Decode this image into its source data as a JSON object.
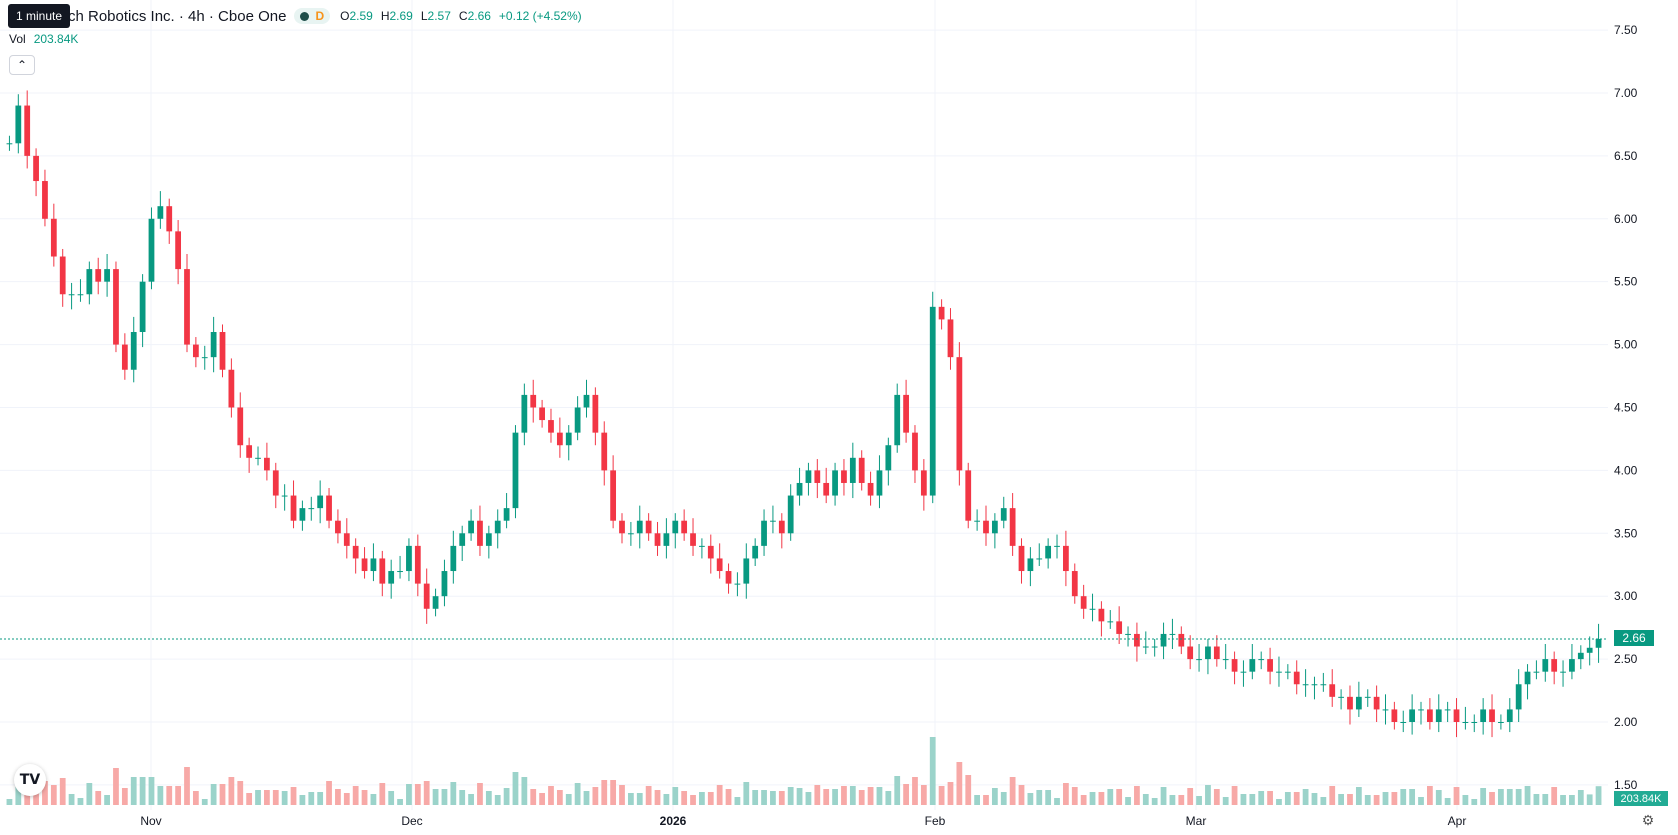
{
  "tooltip": "1 minute",
  "legend": {
    "title": "ch Robotics Inc. · 4h · Cboe One",
    "badge": "D",
    "o_label": "O",
    "o": "2.59",
    "h_label": "H",
    "h": "2.69",
    "l_label": "L",
    "l": "2.57",
    "c_label": "C",
    "c": "2.66",
    "change": "+0.12 (+4.52%)"
  },
  "volume_legend": {
    "label": "Vol",
    "value": "203.84K"
  },
  "collapse_icon": "chevron-up-icon",
  "last_price_tag": "2.66",
  "last_volume_tag": "203.84K",
  "colors": {
    "up": "#089981",
    "down": "#F23645",
    "vol_up": "#9BD3CA",
    "vol_down": "#F7A9A7"
  },
  "chart_data": {
    "type": "candlestick",
    "interval": "4h",
    "y_axis": {
      "ticks": [
        "7.50",
        "7.00",
        "6.50",
        "6.00",
        "5.50",
        "5.00",
        "4.50",
        "4.00",
        "3.50",
        "3.00",
        "2.50",
        "2.00",
        "1.50"
      ],
      "range": [
        1.38,
        7.58
      ]
    },
    "x_axis": {
      "ticks": [
        "Nov",
        "Dec",
        "2026",
        "Feb",
        "Mar",
        "Apr"
      ]
    },
    "last_price": 2.66,
    "closes": [
      6.6,
      6.9,
      6.5,
      6.3,
      6.0,
      5.7,
      5.4,
      5.4,
      5.4,
      5.6,
      5.5,
      5.6,
      5.0,
      4.8,
      5.1,
      5.5,
      6.0,
      6.1,
      5.9,
      5.6,
      5.0,
      4.9,
      4.9,
      5.1,
      4.8,
      4.5,
      4.2,
      4.1,
      4.1,
      4.0,
      3.8,
      3.8,
      3.6,
      3.7,
      3.7,
      3.8,
      3.6,
      3.5,
      3.4,
      3.3,
      3.2,
      3.3,
      3.1,
      3.2,
      3.2,
      3.4,
      3.1,
      2.9,
      3.0,
      3.2,
      3.4,
      3.5,
      3.6,
      3.4,
      3.5,
      3.6,
      3.7,
      4.3,
      4.6,
      4.5,
      4.4,
      4.3,
      4.2,
      4.3,
      4.5,
      4.6,
      4.3,
      4.0,
      3.6,
      3.5,
      3.5,
      3.6,
      3.5,
      3.4,
      3.5,
      3.6,
      3.5,
      3.4,
      3.4,
      3.3,
      3.2,
      3.1,
      3.1,
      3.3,
      3.4,
      3.6,
      3.6,
      3.5,
      3.8,
      3.9,
      4.0,
      3.9,
      3.8,
      4.0,
      3.9,
      4.1,
      3.9,
      3.8,
      4.0,
      4.2,
      4.6,
      4.3,
      4.0,
      3.8,
      5.3,
      5.2,
      4.9,
      4.0,
      3.6,
      3.6,
      3.5,
      3.6,
      3.7,
      3.4,
      3.2,
      3.3,
      3.3,
      3.4,
      3.4,
      3.2,
      3.0,
      2.9,
      2.9,
      2.8,
      2.8,
      2.7,
      2.7,
      2.6,
      2.6,
      2.6,
      2.7,
      2.7,
      2.6,
      2.5,
      2.5,
      2.6,
      2.5,
      2.5,
      2.4,
      2.4,
      2.5,
      2.5,
      2.4,
      2.4,
      2.4,
      2.3,
      2.3,
      2.3,
      2.3,
      2.2,
      2.2,
      2.1,
      2.2,
      2.2,
      2.1,
      2.1,
      2.0,
      2.0,
      2.1,
      2.1,
      2.0,
      2.1,
      2.1,
      2.0,
      2.0,
      2.0,
      2.1,
      2.0,
      2.0,
      2.1,
      2.3,
      2.4,
      2.4,
      2.5,
      2.4,
      2.4,
      2.5,
      2.55,
      2.59,
      2.66
    ]
  }
}
